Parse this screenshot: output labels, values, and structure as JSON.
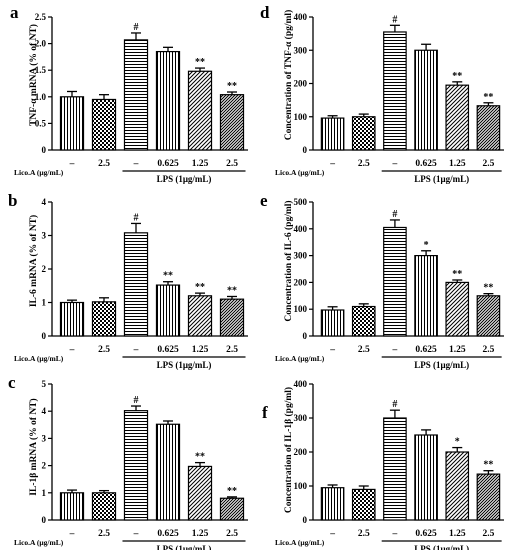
{
  "x_axis": {
    "treatment_label": "Lico.A (μg/mL)",
    "categories": [
      "–",
      "2.5",
      "–",
      "0.625",
      "1.25",
      "2.5"
    ],
    "group_label": "LPS (1μg/mL)"
  },
  "chart_data": [
    {
      "panel": "a",
      "type": "bar",
      "ylabel": "TNF-α mRNA (% of NT)",
      "ylim": [
        0,
        2.5
      ],
      "yticks": [
        "0",
        "0.5",
        "1.0",
        "1.5",
        "2.0",
        "2.5"
      ],
      "categories": [
        "–",
        "2.5",
        "–",
        "0.625",
        "1.25",
        "2.5"
      ],
      "values": [
        1.0,
        0.95,
        2.07,
        1.85,
        1.48,
        1.04
      ],
      "errors": [
        0.1,
        0.09,
        0.13,
        0.08,
        0.06,
        0.05
      ],
      "annotations": [
        "",
        "",
        "#",
        "",
        "**",
        "**"
      ],
      "patterns": [
        "vlines",
        "checker",
        "hlines",
        "vlines",
        "diag",
        "dense-diag"
      ]
    },
    {
      "panel": "d",
      "type": "bar",
      "ylabel": "Concentration of TNF-α (pg/ml)",
      "ylim": [
        0,
        400
      ],
      "yticks": [
        "0",
        "100",
        "200",
        "300",
        "400"
      ],
      "categories": [
        "–",
        "2.5",
        "–",
        "0.625",
        "1.25",
        "2.5"
      ],
      "values": [
        96,
        100,
        355,
        300,
        195,
        133
      ],
      "errors": [
        7,
        8,
        20,
        18,
        10,
        9
      ],
      "annotations": [
        "",
        "",
        "#",
        "",
        "**",
        "**"
      ],
      "patterns": [
        "vlines",
        "checker",
        "hlines",
        "vlines",
        "diag",
        "dense-diag"
      ]
    },
    {
      "panel": "b",
      "type": "bar",
      "ylabel": "IL-6 mRNA (% of NT)",
      "ylim": [
        0,
        4
      ],
      "yticks": [
        "0",
        "1",
        "2",
        "3",
        "4"
      ],
      "categories": [
        "–",
        "2.5",
        "–",
        "0.625",
        "1.25",
        "2.5"
      ],
      "values": [
        1.0,
        1.02,
        3.08,
        1.52,
        1.2,
        1.1
      ],
      "errors": [
        0.07,
        0.12,
        0.28,
        0.1,
        0.08,
        0.08
      ],
      "annotations": [
        "",
        "",
        "#",
        "**",
        "**",
        "**"
      ],
      "patterns": [
        "vlines",
        "checker",
        "hlines",
        "vlines",
        "diag",
        "dense-diag"
      ]
    },
    {
      "panel": "e",
      "type": "bar",
      "ylabel": "Concentration of IL-6 (pg/ml)",
      "ylim": [
        0,
        500
      ],
      "yticks": [
        "0",
        "100",
        "200",
        "300",
        "400",
        "500"
      ],
      "categories": [
        "–",
        "2.5",
        "–",
        "0.625",
        "1.25",
        "2.5"
      ],
      "values": [
        97,
        110,
        405,
        300,
        200,
        150
      ],
      "errors": [
        12,
        10,
        28,
        18,
        9,
        8
      ],
      "annotations": [
        "",
        "",
        "#",
        "*",
        "**",
        "**"
      ],
      "patterns": [
        "vlines",
        "checker",
        "hlines",
        "vlines",
        "diag",
        "dense-diag"
      ]
    },
    {
      "panel": "c",
      "type": "bar",
      "ylabel": "IL-1β mRNA (% of NT)",
      "ylim": [
        0,
        5
      ],
      "yticks": [
        "0",
        "1",
        "2",
        "3",
        "4",
        "5"
      ],
      "categories": [
        "–",
        "2.5",
        "–",
        "0.625",
        "1.25",
        "2.5"
      ],
      "values": [
        1.0,
        1.0,
        4.02,
        3.52,
        1.97,
        0.8
      ],
      "errors": [
        0.1,
        0.08,
        0.17,
        0.12,
        0.14,
        0.05
      ],
      "annotations": [
        "",
        "",
        "#",
        "",
        "**",
        "**"
      ],
      "patterns": [
        "vlines",
        "checker",
        "hlines",
        "vlines",
        "diag",
        "dense-diag"
      ]
    },
    {
      "panel": "f",
      "type": "bar",
      "ylabel": "Concentration of IL-1β (pg/ml)",
      "ylim": [
        0,
        400
      ],
      "yticks": [
        "0",
        "100",
        "200",
        "300",
        "400"
      ],
      "categories": [
        "–",
        "2.5",
        "–",
        "0.625",
        "1.25",
        "2.5"
      ],
      "values": [
        95,
        90,
        300,
        250,
        200,
        135
      ],
      "errors": [
        8,
        10,
        23,
        15,
        13,
        10
      ],
      "annotations": [
        "",
        "",
        "#",
        "",
        "*",
        "**"
      ],
      "patterns": [
        "vlines",
        "checker",
        "hlines",
        "vlines",
        "diag",
        "dense-diag"
      ]
    }
  ]
}
